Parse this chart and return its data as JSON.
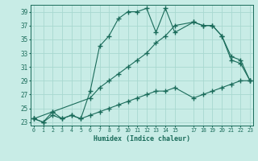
{
  "xlabel": "Humidex (Indice chaleur)",
  "bg_color": "#c8ece6",
  "grid_color": "#a8d8d0",
  "line_color": "#1a6b5a",
  "line1_x": [
    0,
    1,
    2,
    3,
    4,
    5,
    6,
    7,
    8,
    9,
    10,
    11,
    12,
    13,
    14,
    15,
    17,
    18,
    19,
    20,
    21,
    22,
    23
  ],
  "line1_y": [
    23.5,
    23.0,
    24.5,
    23.5,
    24.0,
    23.5,
    27.5,
    34.0,
    35.5,
    38.0,
    39.0,
    39.0,
    39.5,
    36.0,
    39.5,
    36.0,
    37.5,
    37.0,
    37.0,
    35.5,
    32.0,
    31.5,
    29.0
  ],
  "line2_x": [
    0,
    2,
    6,
    7,
    8,
    9,
    10,
    11,
    12,
    13,
    14,
    15,
    17,
    18,
    19,
    20,
    21,
    22,
    23
  ],
  "line2_y": [
    23.5,
    24.5,
    26.5,
    28.0,
    29.0,
    30.0,
    31.0,
    32.0,
    33.0,
    34.5,
    35.5,
    37.0,
    37.5,
    37.0,
    37.0,
    35.5,
    32.5,
    32.0,
    29.0
  ],
  "line3_x": [
    0,
    1,
    2,
    3,
    4,
    5,
    6,
    7,
    8,
    9,
    10,
    11,
    12,
    13,
    14,
    15,
    17,
    18,
    19,
    20,
    21,
    22,
    23
  ],
  "line3_y": [
    23.5,
    23.0,
    24.0,
    23.5,
    24.0,
    23.5,
    24.0,
    24.5,
    25.0,
    25.5,
    26.0,
    26.5,
    27.0,
    27.5,
    27.5,
    28.0,
    26.5,
    27.0,
    27.5,
    28.0,
    28.5,
    29.0,
    29.0
  ],
  "xlim": [
    -0.3,
    23.3
  ],
  "ylim": [
    22.5,
    40.0
  ],
  "yticks": [
    23,
    25,
    27,
    29,
    31,
    33,
    35,
    37,
    39
  ],
  "xticks": [
    0,
    1,
    2,
    3,
    4,
    5,
    6,
    7,
    8,
    9,
    10,
    11,
    12,
    13,
    14,
    15,
    17,
    18,
    19,
    20,
    21,
    22,
    23
  ],
  "xticklabels": [
    "0",
    "1",
    "2",
    "3",
    "4",
    "5",
    "6",
    "7",
    "8",
    "9",
    "10",
    "11",
    "12",
    "13",
    "14",
    "15",
    "17",
    "18",
    "19",
    "20",
    "21",
    "22",
    "23"
  ]
}
